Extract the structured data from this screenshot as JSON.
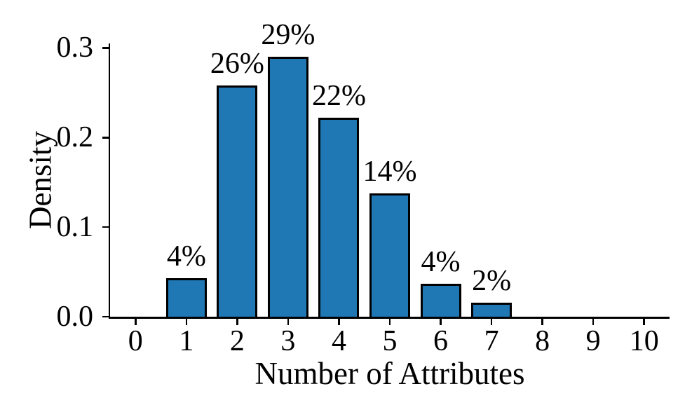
{
  "figure": {
    "background": "#ffffff",
    "text_color": "#000000"
  },
  "chart_data": {
    "type": "bar",
    "title": "",
    "xlabel": "Number of Attributes",
    "ylabel": "Density",
    "categories": [
      0,
      1,
      2,
      3,
      4,
      5,
      6,
      7,
      8,
      9,
      10
    ],
    "values": [
      0,
      0.043,
      0.258,
      0.29,
      0.222,
      0.138,
      0.037,
      0.016,
      0,
      0,
      0
    ],
    "bar_labels": [
      "",
      "4%",
      "26%",
      "29%",
      "22%",
      "14%",
      "4%",
      "2%",
      "",
      "",
      ""
    ],
    "xticks": [
      "0",
      "1",
      "2",
      "3",
      "4",
      "5",
      "6",
      "7",
      "8",
      "9",
      "10"
    ],
    "yticks": [
      "0.0",
      "0.1",
      "0.2",
      "0.3"
    ],
    "ytick_values": [
      0,
      0.1,
      0.2,
      0.3
    ],
    "xlim": [
      -0.5,
      10.5
    ],
    "ylim": [
      0,
      0.305
    ],
    "bar_width": 0.8,
    "bar_color": "#1f77b4",
    "bar_edge_color": "#000000",
    "axis_color": "#000000",
    "grid": false,
    "legend": null
  }
}
